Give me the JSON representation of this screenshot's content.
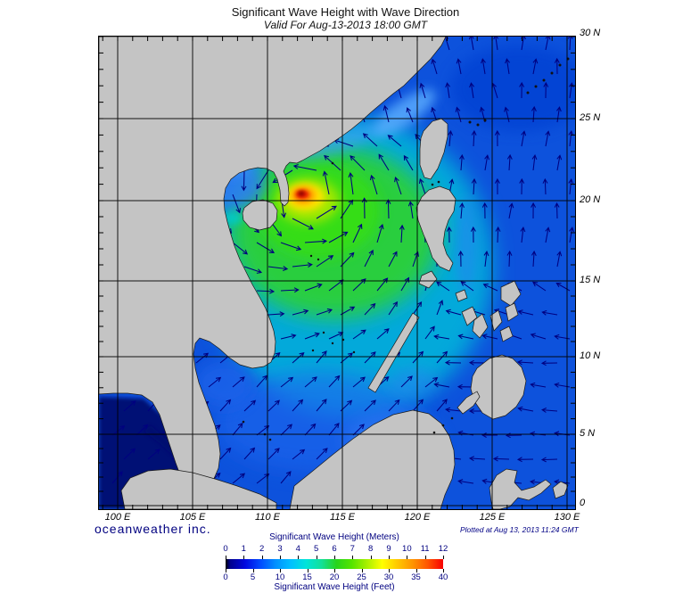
{
  "title": "Significant Wave Height with Wave Direction",
  "subtitle": "Valid For Aug-13-2013 18:00 GMT",
  "branding": {
    "logo_text": "oceanweather inc.",
    "plotted_at": "Plotted at Aug 13, 2013 11:24 GMT"
  },
  "axes": {
    "lon_labels": [
      "100 E",
      "105 E",
      "110 E",
      "115 E",
      "120 E",
      "125 E",
      "130 E"
    ],
    "lat_labels": [
      "30 N",
      "25 N",
      "20 N",
      "15 N",
      "10 N",
      "5 N",
      "0"
    ]
  },
  "colorbar": {
    "meters_title": "Significant Wave Height (Meters)",
    "meters_ticks": [
      "0",
      "1",
      "2",
      "3",
      "4",
      "5",
      "6",
      "7",
      "8",
      "9",
      "10",
      "11",
      "12"
    ],
    "feet_title": "Significant Wave Height (Feet)",
    "feet_ticks": [
      "0",
      "5",
      "10",
      "15",
      "20",
      "25",
      "30",
      "35",
      "40"
    ],
    "gradient_stops": [
      "#000000",
      "#00008c",
      "#0008e0",
      "#004bff",
      "#0090ff",
      "#00c0ff",
      "#00e4da",
      "#12e09a",
      "#27d41c",
      "#55e400",
      "#a8f000",
      "#ffff00",
      "#ffc800",
      "#ff9400",
      "#ff5400",
      "#f80000"
    ]
  },
  "chart_data": {
    "type": "heatmap",
    "field": "Significant Wave Height",
    "units_primary": "Meters",
    "units_secondary": "Feet",
    "scale_range_m": [
      0,
      12
    ],
    "scale_range_ft": [
      0,
      40
    ],
    "valid_time": "Aug-13-2013 18:00 GMT",
    "plotted_time": "Aug 13, 2013 11:24 GMT",
    "lon_range_deg_e": [
      99,
      130.5
    ],
    "lat_range_deg_n": [
      0,
      30
    ],
    "grid_interval_deg": 5,
    "overlay": "wave direction arrows (cyclonic around storm center)",
    "peak": {
      "lon_e": 112.6,
      "lat_n": 20.3,
      "wave_height_m": 12,
      "description": "storm peak east of Hainan with green 4-8 m swell plume spreading southeast across the South China Sea"
    },
    "background_wave_height_m": {
      "philippine_sea": 2.5,
      "southern_south_china_sea": 2,
      "gulf_of_tonkin": 2,
      "andaman_sea_strip": 0.5
    }
  },
  "colors": {
    "land": "#c4c4c4",
    "ocean_base": "#0d52dc",
    "arrow": "#000080",
    "label_navy": "#000080",
    "grid": "#000000"
  }
}
